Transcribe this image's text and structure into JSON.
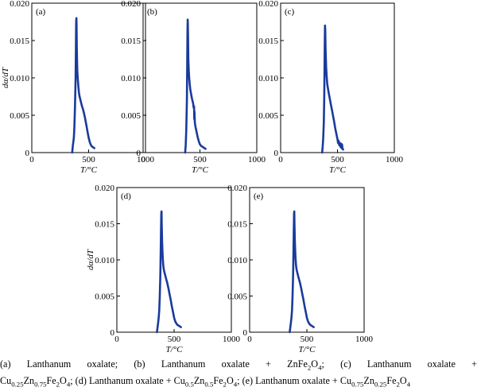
{
  "chart_data": [
    {
      "type": "line",
      "panel_label": "(a)",
      "xlabel": "T/°C",
      "ylabel": "dα/dT",
      "xlim": [
        0,
        1000
      ],
      "ylim": [
        0,
        0.02
      ],
      "xticks": [
        "0",
        "500",
        "1000"
      ],
      "yticks": [
        "0",
        "0.005",
        "0.010",
        "0.015",
        "0.020"
      ],
      "color": "#1a3a9c",
      "x": [
        355,
        360,
        370,
        375,
        380,
        385,
        388,
        390,
        392,
        394,
        396,
        400,
        405,
        410,
        415,
        420,
        430,
        440,
        450,
        460,
        470,
        480,
        490,
        500,
        510,
        520,
        530,
        540,
        550
      ],
      "y": [
        0,
        0.0008,
        0.002,
        0.0035,
        0.006,
        0.01,
        0.014,
        0.0175,
        0.018,
        0.017,
        0.014,
        0.011,
        0.0098,
        0.0088,
        0.008,
        0.0075,
        0.0069,
        0.0063,
        0.0058,
        0.0052,
        0.0045,
        0.0037,
        0.0028,
        0.002,
        0.0014,
        0.001,
        0.0008,
        0.0007,
        0.0006
      ]
    },
    {
      "type": "line",
      "panel_label": "(b)",
      "xlabel": "T/°C",
      "ylabel": "",
      "xlim": [
        0,
        1000
      ],
      "ylim": [
        0,
        0.02
      ],
      "xticks": [
        "0",
        "500",
        "1000"
      ],
      "yticks": [
        "0",
        "0.005",
        "0.010",
        "0.015",
        "0.020"
      ],
      "color": "#1a3a9c",
      "x": [
        370,
        375,
        380,
        385,
        388,
        390,
        392,
        394,
        396,
        398,
        402,
        406,
        410,
        415,
        420,
        430,
        440,
        445,
        448,
        450,
        452,
        455,
        460,
        470,
        480,
        490,
        500,
        510,
        520,
        530,
        540,
        550
      ],
      "y": [
        0,
        0.001,
        0.003,
        0.007,
        0.012,
        0.016,
        0.0178,
        0.017,
        0.015,
        0.0125,
        0.0108,
        0.0098,
        0.0092,
        0.0085,
        0.008,
        0.0072,
        0.0066,
        0.006,
        0.0062,
        0.0045,
        0.0055,
        0.004,
        0.0035,
        0.0028,
        0.0021,
        0.0015,
        0.0011,
        0.0009,
        0.0008,
        0.0007,
        0.0006,
        0.0005
      ]
    },
    {
      "type": "line",
      "panel_label": "(c)",
      "xlabel": "T/°C",
      "ylabel": "",
      "xlim": [
        0,
        1000
      ],
      "ylim": [
        0,
        0.02
      ],
      "xticks": [
        "0",
        "500",
        "1000"
      ],
      "yticks": [
        "0",
        "0.005",
        "0.010",
        "0.015",
        "0.020"
      ],
      "color": "#1a3a9c",
      "x": [
        365,
        370,
        375,
        380,
        383,
        386,
        388,
        390,
        392,
        395,
        400,
        405,
        410,
        420,
        430,
        440,
        450,
        460,
        470,
        480,
        490,
        500,
        505,
        510,
        515,
        520,
        525,
        530,
        535,
        540,
        545,
        550
      ],
      "y": [
        0,
        0.0008,
        0.002,
        0.004,
        0.007,
        0.011,
        0.0145,
        0.017,
        0.0165,
        0.014,
        0.0115,
        0.0102,
        0.0092,
        0.0082,
        0.0074,
        0.0066,
        0.0058,
        0.005,
        0.0042,
        0.0033,
        0.0025,
        0.0018,
        0.0013,
        0.0016,
        0.001,
        0.0013,
        0.0008,
        0.0012,
        0.0006,
        0.0011,
        0.0005,
        0.0004
      ]
    },
    {
      "type": "line",
      "panel_label": "(d)",
      "xlabel": "T/°C",
      "ylabel": "dα/dT",
      "xlim": [
        0,
        1000
      ],
      "ylim": [
        0,
        0.02
      ],
      "xticks": [
        "0",
        "500",
        "1000"
      ],
      "yticks": [
        "0",
        "0.005",
        "0.010",
        "0.015",
        "0.020"
      ],
      "color": "#1a3a9c",
      "x": [
        350,
        355,
        360,
        365,
        370,
        375,
        380,
        383,
        386,
        388,
        390,
        392,
        395,
        400,
        405,
        410,
        415,
        420,
        430,
        440,
        450,
        460,
        470,
        480,
        490,
        500,
        510,
        520,
        530,
        540,
        550,
        560
      ],
      "y": [
        0,
        0.0006,
        0.0012,
        0.002,
        0.003,
        0.005,
        0.008,
        0.0115,
        0.0145,
        0.0165,
        0.0167,
        0.015,
        0.0125,
        0.0105,
        0.0093,
        0.0087,
        0.0083,
        0.008,
        0.0074,
        0.0068,
        0.0061,
        0.0053,
        0.0045,
        0.0036,
        0.0028,
        0.002,
        0.0015,
        0.0012,
        0.001,
        0.0009,
        0.0008,
        0.0007
      ]
    },
    {
      "type": "line",
      "panel_label": "(e)",
      "xlabel": "T/°C",
      "ylabel": "",
      "xlim": [
        0,
        1000
      ],
      "ylim": [
        0,
        0.02
      ],
      "xticks": [
        "0",
        "500",
        "1000"
      ],
      "yticks": [
        "0",
        "0.005",
        "0.010",
        "0.015",
        "0.020"
      ],
      "color": "#1a3a9c",
      "x": [
        350,
        355,
        360,
        365,
        370,
        375,
        380,
        383,
        386,
        388,
        390,
        392,
        395,
        400,
        405,
        410,
        415,
        420,
        430,
        440,
        450,
        460,
        470,
        480,
        490,
        500,
        510,
        520,
        530,
        540,
        550,
        560
      ],
      "y": [
        0,
        0.0006,
        0.0012,
        0.002,
        0.003,
        0.005,
        0.008,
        0.0115,
        0.0145,
        0.0165,
        0.0167,
        0.015,
        0.0125,
        0.0105,
        0.0093,
        0.0087,
        0.0083,
        0.008,
        0.0074,
        0.0068,
        0.0061,
        0.0053,
        0.0045,
        0.0036,
        0.0028,
        0.002,
        0.0015,
        0.0012,
        0.001,
        0.0009,
        0.0008,
        0.0007
      ]
    }
  ],
  "caption": {
    "line1": [
      {
        "t": "(a) Lanthanum oxalate; (b) Lanthanum oxalate + ZnFe"
      },
      {
        "t": "2",
        "sub": true
      },
      {
        "t": "O"
      },
      {
        "t": "4",
        "sub": true
      },
      {
        "t": "; (c) Lanthanum oxalate +"
      }
    ],
    "line2": [
      {
        "t": "Cu"
      },
      {
        "t": "0.25",
        "sub": true
      },
      {
        "t": "Zn"
      },
      {
        "t": "0.75",
        "sub": true
      },
      {
        "t": "Fe"
      },
      {
        "t": "2",
        "sub": true
      },
      {
        "t": "O"
      },
      {
        "t": "4",
        "sub": true
      },
      {
        "t": "; (d) Lanthanum oxalate + Cu"
      },
      {
        "t": "0.5",
        "sub": true
      },
      {
        "t": "Zn"
      },
      {
        "t": "0.5",
        "sub": true
      },
      {
        "t": "Fe"
      },
      {
        "t": "2",
        "sub": true
      },
      {
        "t": "O"
      },
      {
        "t": "4",
        "sub": true
      },
      {
        "t": "; (e) Lanthanum oxalate + Cu"
      },
      {
        "t": "0.75",
        "sub": true
      },
      {
        "t": "Zn"
      },
      {
        "t": "0.25",
        "sub": true
      },
      {
        "t": "Fe"
      },
      {
        "t": "2",
        "sub": true
      },
      {
        "t": "O"
      },
      {
        "t": "4",
        "sub": true
      }
    ]
  }
}
